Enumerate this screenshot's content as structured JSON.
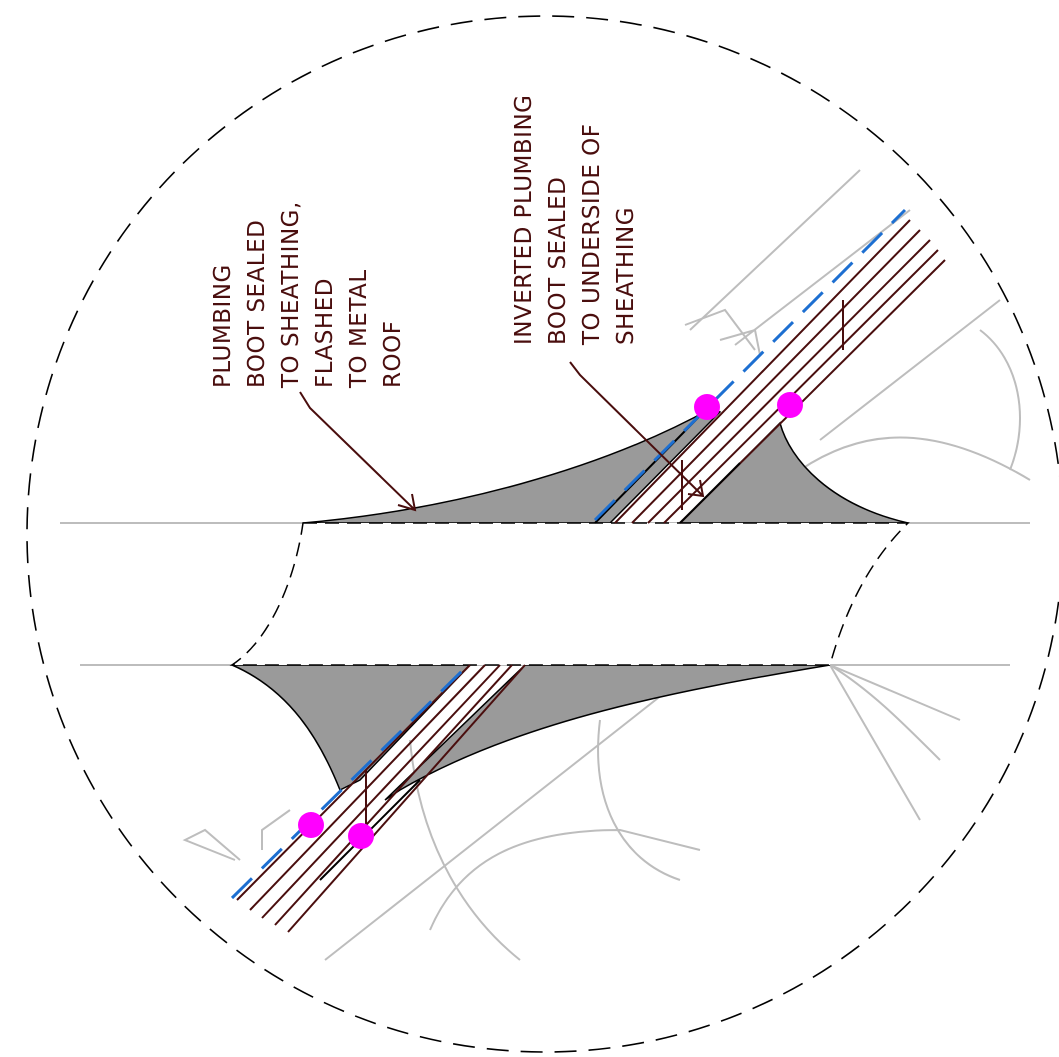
{
  "detail": {
    "labels": {
      "left_note": [
        "PLUMBING",
        "BOOT SEALED",
        "TO SHEATHING,",
        "FLASHED",
        "TO METAL",
        "ROOF"
      ],
      "right_note": [
        "INVERTED PLUMBING",
        "BOOT SEALED",
        "TO UNDERSIDE OF",
        "SHEATHING"
      ]
    },
    "colors": {
      "annotation_text": "#4a0e0e",
      "sealant_fill": "#9a9a9a",
      "air_barrier_dash": "#1d6fd1",
      "fastener_marker": "#ff00ff",
      "hidden_lines": "#bdbdbd"
    }
  }
}
